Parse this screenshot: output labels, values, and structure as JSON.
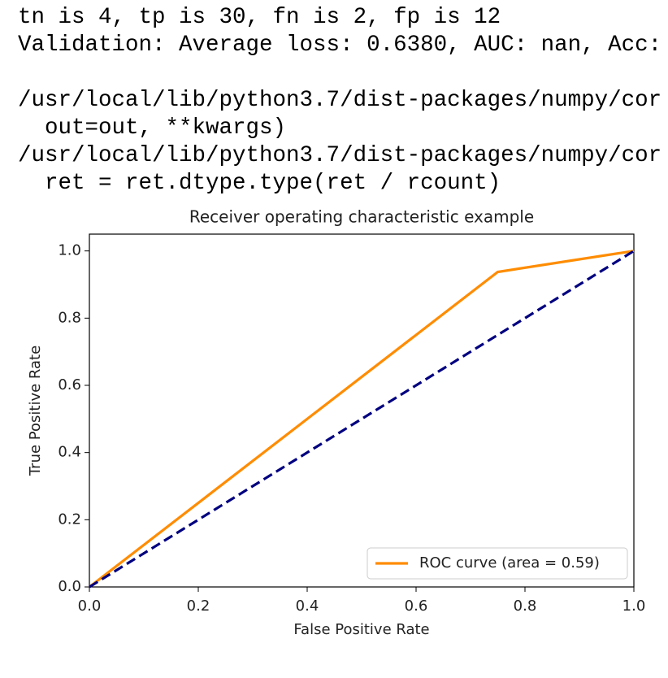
{
  "output_lines": [
    "tn is 4, tp is 30, fn is 2, fp is 12",
    "Validation: Average loss: 0.6380, AUC: nan, Acc:"
  ],
  "warning_lines": [
    "/usr/local/lib/python3.7/dist-packages/numpy/cor",
    "  out=out, **kwargs)",
    "/usr/local/lib/python3.7/dist-packages/numpy/cor",
    "  ret = ret.dtype.type(ret / rcount)"
  ],
  "chart_data": {
    "type": "line",
    "title": "Receiver operating characteristic example",
    "x_label": "False Positive Rate",
    "y_label": "True Positive Rate",
    "xlim": [
      0,
      1
    ],
    "ylim": [
      0,
      1.05
    ],
    "xticks": [
      {
        "value": 0,
        "label": "0.0"
      },
      {
        "value": 0.2,
        "label": "0.2"
      },
      {
        "value": 0.4,
        "label": "0.4"
      },
      {
        "value": 0.6,
        "label": "0.6"
      },
      {
        "value": 0.8,
        "label": "0.8"
      },
      {
        "value": 1,
        "label": "1.0"
      }
    ],
    "yticks": [
      {
        "value": 0,
        "label": "0.0"
      },
      {
        "value": 0.2,
        "label": "0.2"
      },
      {
        "value": 0.4,
        "label": "0.4"
      },
      {
        "value": 0.6,
        "label": "0.6"
      },
      {
        "value": 0.8,
        "label": "0.8"
      },
      {
        "value": 1,
        "label": "1.0"
      }
    ],
    "series": [
      {
        "name": "ROC curve (area = 0.59)",
        "color": "#ff8c00",
        "x": [
          0,
          0.75,
          1
        ],
        "values": [
          0,
          0.9375,
          1
        ]
      },
      {
        "color": "#000080",
        "dashed": true,
        "x": [
          0,
          1
        ],
        "values": [
          0,
          1
        ]
      }
    ],
    "legend": "lower right"
  }
}
